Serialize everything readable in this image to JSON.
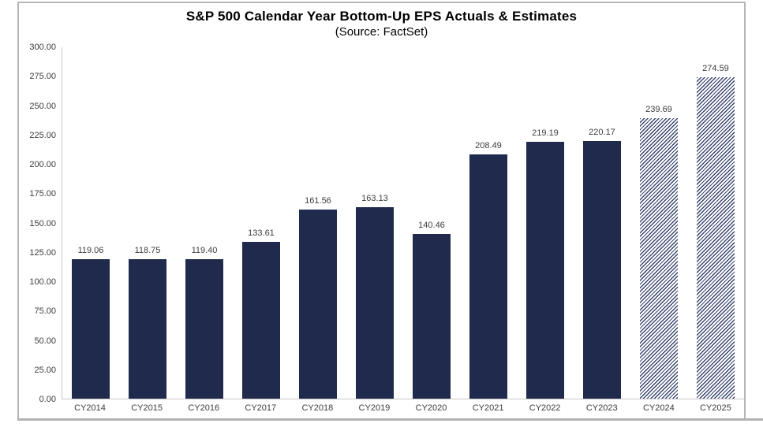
{
  "frame": {
    "border_color": "#b6b6b6",
    "shadow_color": "#b3b3b3"
  },
  "chart_data": {
    "type": "bar",
    "title": "S&P 500 Calendar Year Bottom-Up EPS Actuals & Estimates",
    "subtitle": "(Source: FactSet)",
    "categories": [
      "CY2014",
      "CY2015",
      "CY2016",
      "CY2017",
      "CY2018",
      "CY2019",
      "CY2020",
      "CY2021",
      "CY2022",
      "CY2023",
      "CY2024",
      "CY2025"
    ],
    "values": [
      119.06,
      118.75,
      119.4,
      133.61,
      161.56,
      163.13,
      140.46,
      208.49,
      219.19,
      220.17,
      239.69,
      274.59
    ],
    "value_labels": [
      "119.06",
      "118.75",
      "119.40",
      "133.61",
      "161.56",
      "163.13",
      "140.46",
      "208.49",
      "219.19",
      "220.17",
      "239.69",
      "274.59"
    ],
    "estimate_flags": [
      false,
      false,
      false,
      false,
      false,
      false,
      false,
      false,
      false,
      false,
      true,
      true
    ],
    "ylim": [
      0,
      300
    ],
    "ytick_step": 25,
    "ytick_labels": [
      "0.00",
      "25.00",
      "50.00",
      "75.00",
      "100.00",
      "125.00",
      "150.00",
      "175.00",
      "200.00",
      "225.00",
      "250.00",
      "275.00",
      "300.00"
    ],
    "xlabel": "",
    "ylabel": "",
    "grid": "off",
    "legend": "none",
    "bar_color_actual": "#1f2a4c",
    "bar_color_estimate_stripe": "#39466f",
    "axis_line_color": "#c9c9c9"
  }
}
